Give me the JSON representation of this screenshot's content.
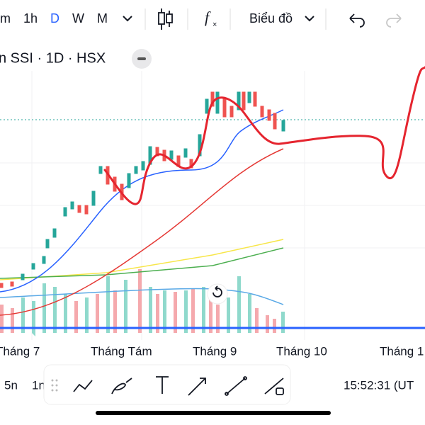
{
  "top_toolbar": {
    "intervals": [
      "m",
      "1h",
      "D",
      "W",
      "M"
    ],
    "active_interval": "D",
    "chart_type_label": "Biểu đồ"
  },
  "symbol": {
    "label": "n SSI · 1D · HSX"
  },
  "x_axis": {
    "labels": [
      "Tháng 7",
      "Tháng Tám",
      "Tháng 9",
      "Tháng 10",
      "Tháng 1"
    ]
  },
  "bottom_bar": {
    "ranges": [
      "5n",
      "1n"
    ],
    "time": "15:52:31 (UT"
  }
}
